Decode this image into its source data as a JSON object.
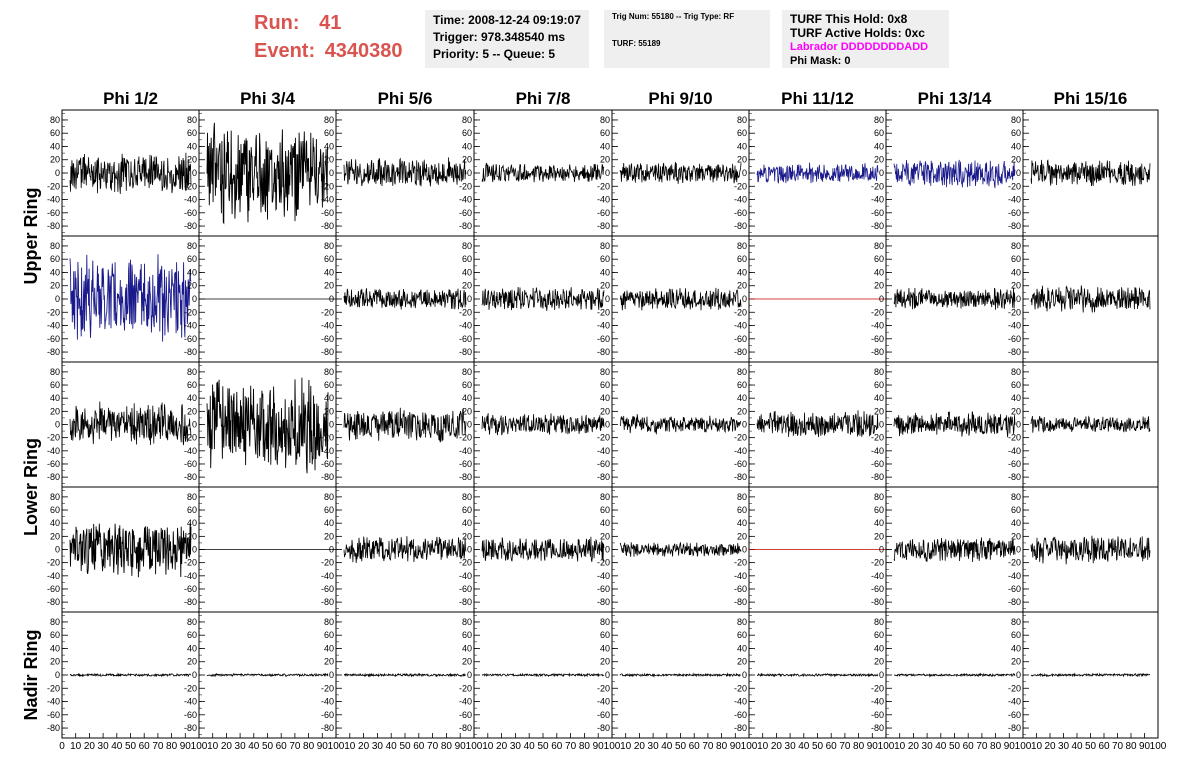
{
  "header": {
    "run_label": "Run:",
    "run_value": "41",
    "event_label": "Event:",
    "event_value": "4340380",
    "time": "Time: 2008-12-24 09:19:07",
    "trigger": "Trigger: 978.348540 ms",
    "priority_queue": "Priority: 5 -- Queue: 5",
    "trig_num_type": "Trig Num: 55180 -- Trig Type: RF",
    "turf": "TURF: 55189",
    "turf_this_hold": "TURF This Hold: 0x8",
    "turf_active_holds": "TURF Active Holds: 0xc",
    "labrador": "Labrador DDDDDDDDADD",
    "phi_mask": "Phi Mask: 0"
  },
  "colors": {
    "run_text": "#d9534f",
    "labrador": "#ff00ff",
    "trace_default": "#000000",
    "trace_blue": "#1a1a8c",
    "trace_flat_red": "#cc0000",
    "info_box_bg": "#efefef"
  },
  "columns": [
    "Phi 1/2",
    "Phi 3/4",
    "Phi 5/6",
    "Phi 7/8",
    "Phi 9/10",
    "Phi 11/12",
    "Phi 13/14",
    "Phi 15/16"
  ],
  "rings": [
    {
      "label": "Upper Ring",
      "rows": 2
    },
    {
      "label": "Lower Ring",
      "rows": 2
    },
    {
      "label": "Nadir Ring",
      "rows": 1
    }
  ],
  "y_ticks": [
    "80",
    "60",
    "40",
    "20",
    "0",
    "-20",
    "-40",
    "-60",
    "-80"
  ],
  "x_ticks_first": [
    "0",
    "10",
    "20",
    "30",
    "40",
    "50",
    "60",
    "70",
    "80",
    "90",
    "100"
  ],
  "x_ticks_other": [
    "10",
    "20",
    "30",
    "40",
    "50",
    "60",
    "70",
    "80",
    "90",
    "100"
  ],
  "chart_data": {
    "type": "line",
    "xlim": [
      0,
      100
    ],
    "ylim": [
      -95,
      95
    ],
    "grid": false,
    "panels": [
      [
        {
          "amp": 34,
          "color": "trace_default"
        },
        {
          "amp": 80,
          "color": "trace_default"
        },
        {
          "amp": 24,
          "color": "trace_default"
        },
        {
          "amp": 16,
          "color": "trace_default"
        },
        {
          "amp": 17,
          "color": "trace_default"
        },
        {
          "amp": 16,
          "color": "trace_blue"
        },
        {
          "amp": 24,
          "color": "trace_blue"
        },
        {
          "amp": 22,
          "color": "trace_default"
        }
      ],
      [
        {
          "amp": 70,
          "color": "trace_blue"
        },
        {
          "amp": 0,
          "color": "trace_default"
        },
        {
          "amp": 18,
          "color": "trace_default"
        },
        {
          "amp": 20,
          "color": "trace_default"
        },
        {
          "amp": 18,
          "color": "trace_default"
        },
        {
          "amp": 0,
          "color": "trace_flat_red"
        },
        {
          "amp": 18,
          "color": "trace_default"
        },
        {
          "amp": 22,
          "color": "trace_default"
        }
      ],
      [
        {
          "amp": 36,
          "color": "trace_default"
        },
        {
          "amp": 75,
          "color": "trace_default"
        },
        {
          "amp": 28,
          "color": "trace_default"
        },
        {
          "amp": 18,
          "color": "trace_default"
        },
        {
          "amp": 16,
          "color": "trace_default"
        },
        {
          "amp": 22,
          "color": "trace_default"
        },
        {
          "amp": 20,
          "color": "trace_default"
        },
        {
          "amp": 14,
          "color": "trace_default"
        }
      ],
      [
        {
          "amp": 45,
          "color": "trace_default"
        },
        {
          "amp": 0,
          "color": "trace_default"
        },
        {
          "amp": 22,
          "color": "trace_default"
        },
        {
          "amp": 20,
          "color": "trace_default"
        },
        {
          "amp": 12,
          "color": "trace_default"
        },
        {
          "amp": 0,
          "color": "trace_flat_red"
        },
        {
          "amp": 20,
          "color": "trace_default"
        },
        {
          "amp": 24,
          "color": "trace_default"
        }
      ],
      [
        {
          "amp": 2,
          "color": "trace_default"
        },
        {
          "amp": 2,
          "color": "trace_default"
        },
        {
          "amp": 2,
          "color": "trace_default"
        },
        {
          "amp": 2,
          "color": "trace_default"
        },
        {
          "amp": 2,
          "color": "trace_default"
        },
        {
          "amp": 2,
          "color": "trace_default"
        },
        {
          "amp": 2,
          "color": "trace_default"
        },
        {
          "amp": 2,
          "color": "trace_default"
        }
      ]
    ]
  }
}
